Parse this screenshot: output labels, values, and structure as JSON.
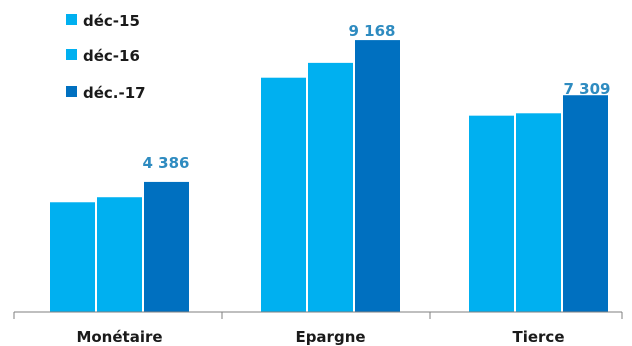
{
  "chart_data": {
    "type": "bar",
    "categories": [
      "Monétaire",
      "Epargne",
      "Tierce"
    ],
    "series": [
      {
        "name": "déc-15",
        "color": "#00b0f0",
        "values": [
          3700,
          7900,
          6620
        ]
      },
      {
        "name": "déc-16",
        "color": "#00b0f0",
        "values": [
          3870,
          8400,
          6700
        ]
      },
      {
        "name": "déc.-17",
        "color": "#0070c0",
        "values": [
          4386,
          9168,
          7309
        ]
      }
    ],
    "data_labels": [
      {
        "category": "Monétaire",
        "text": "4 386"
      },
      {
        "category": "Epargne",
        "text": "9 168"
      },
      {
        "category": "Tierce",
        "text": "7 309"
      }
    ],
    "data_label_color": "#2e8bc0",
    "legend_position": "top-left",
    "ylim": [
      0,
      10520
    ],
    "grid": false
  }
}
